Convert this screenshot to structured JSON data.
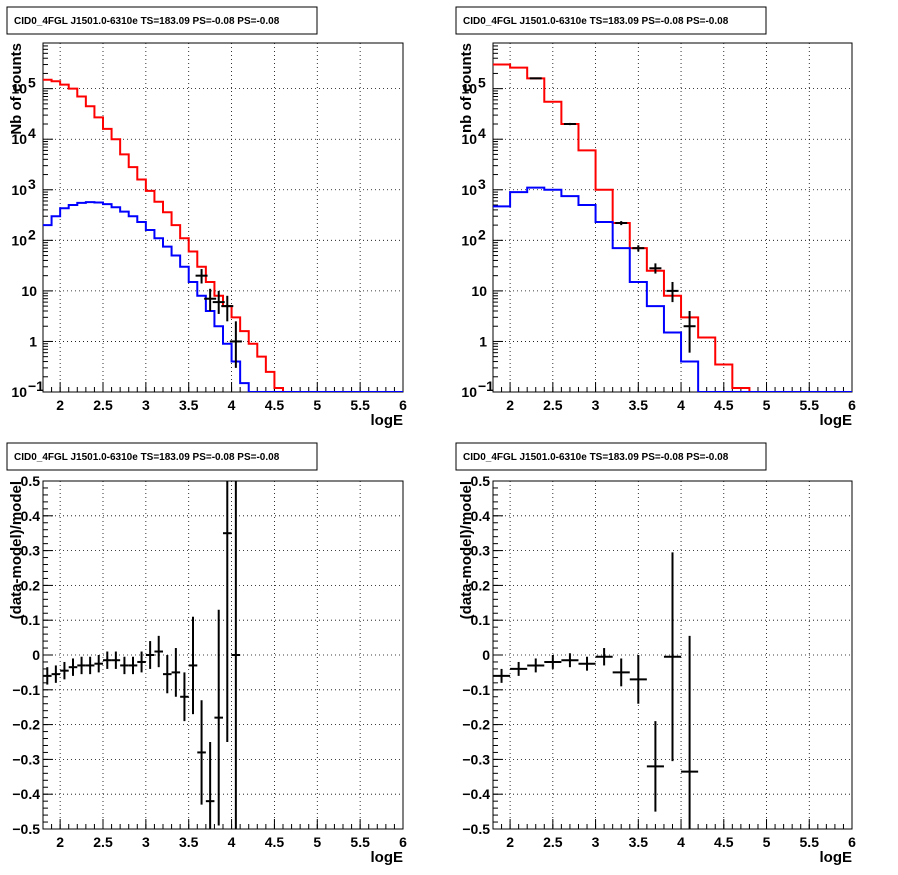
{
  "chart_data": [
    {
      "type": "line",
      "title": "CID0_4FGL J1501.0-6310e TS=183.09 PS=-0.08 PS=-0.08",
      "xlabel": "logE",
      "ylabel": "Nb of counts",
      "scale": "log",
      "grid": true,
      "xlim": [
        1.8,
        6.0
      ],
      "ylim": [
        0.1,
        800000
      ],
      "x_ticks": [
        "2",
        "2.5",
        "3",
        "3.5",
        "4",
        "4.5",
        "5",
        "5.5",
        "6"
      ],
      "y_ticks": [
        {
          "v": 0.1,
          "base": "10",
          "exp": "−1"
        },
        {
          "v": 1,
          "label": "1"
        },
        {
          "v": 10,
          "label": "10"
        },
        {
          "v": 100,
          "base": "10",
          "exp": "2"
        },
        {
          "v": 1000,
          "base": "10",
          "exp": "3"
        },
        {
          "v": 10000,
          "base": "10",
          "exp": "4"
        },
        {
          "v": 100000,
          "base": "10",
          "exp": "5"
        }
      ],
      "bin_edges": [
        1.8,
        1.9,
        2.0,
        2.1,
        2.2,
        2.3,
        2.4,
        2.5,
        2.6,
        2.7,
        2.8,
        2.9,
        3.0,
        3.1,
        3.2,
        3.3,
        3.4,
        3.5,
        3.6,
        3.7,
        3.8,
        3.9,
        4.0,
        4.1,
        4.2,
        4.3,
        4.4,
        4.5,
        4.6,
        4.7,
        4.8,
        4.9,
        5.0,
        5.1,
        5.2,
        5.3,
        5.4,
        5.5,
        5.6,
        5.7,
        5.8,
        5.9,
        6.0
      ],
      "series": [
        {
          "color": "#ff0000",
          "kind": "hist",
          "values": [
            150000,
            140000,
            120000,
            100000,
            70000,
            45000,
            27000,
            16000,
            10000,
            5000,
            2800,
            1600,
            950,
            580,
            360,
            200,
            110,
            60,
            30,
            15,
            8,
            5,
            3,
            1.6,
            0.9,
            0.5,
            0.25,
            0.12,
            0.1,
            0.1,
            0.1,
            0.1,
            0.1,
            0.1,
            0.1,
            0.1,
            0.1,
            0.1,
            0.1,
            0.1,
            0.1,
            0.1
          ]
        },
        {
          "color": "#0000ff",
          "kind": "hist",
          "values": [
            200,
            300,
            430,
            500,
            550,
            570,
            560,
            520,
            450,
            370,
            300,
            230,
            160,
            110,
            75,
            50,
            30,
            15,
            8,
            4,
            2,
            0.9,
            0.4,
            0.15,
            0.1,
            0.1,
            0.1,
            0.1,
            0.1,
            0.1,
            0.1,
            0.1,
            0.1,
            0.1,
            0.1,
            0.1,
            0.1,
            0.1,
            0.1,
            0.1,
            0.1,
            0.1
          ]
        },
        {
          "color": "#000000",
          "kind": "points",
          "points": [
            {
              "x": 3.65,
              "y": 20,
              "ylo": 14,
              "yhi": 27
            },
            {
              "x": 3.75,
              "y": 7,
              "ylo": 4,
              "yhi": 11
            },
            {
              "x": 3.85,
              "y": 6,
              "ylo": 3.5,
              "yhi": 10
            },
            {
              "x": 3.95,
              "y": 5,
              "ylo": 2.5,
              "yhi": 8
            },
            {
              "x": 4.05,
              "y": 1,
              "ylo": 0.3,
              "yhi": 2.5
            }
          ]
        }
      ]
    },
    {
      "type": "line",
      "title": "CID0_4FGL J1501.0-6310e TS=183.09 PS=-0.08 PS=-0.08",
      "xlabel": "logE",
      "ylabel": "nb of counts",
      "scale": "log",
      "grid": true,
      "xlim": [
        1.8,
        6.0
      ],
      "ylim": [
        0.1,
        800000
      ],
      "x_ticks": [
        "2",
        "2.5",
        "3",
        "3.5",
        "4",
        "4.5",
        "5",
        "5.5",
        "6"
      ],
      "y_ticks": [
        {
          "v": 0.1,
          "base": "10",
          "exp": "−1"
        },
        {
          "v": 1,
          "label": "1"
        },
        {
          "v": 10,
          "label": "10"
        },
        {
          "v": 100,
          "base": "10",
          "exp": "2"
        },
        {
          "v": 1000,
          "base": "10",
          "exp": "3"
        },
        {
          "v": 10000,
          "base": "10",
          "exp": "4"
        },
        {
          "v": 100000,
          "base": "10",
          "exp": "5"
        }
      ],
      "bin_edges": [
        1.8,
        2.0,
        2.2,
        2.4,
        2.6,
        2.8,
        3.0,
        3.2,
        3.4,
        3.6,
        3.8,
        4.0,
        4.2,
        4.4,
        4.6,
        4.8,
        5.0,
        5.2,
        5.4,
        5.6,
        5.8,
        6.0
      ],
      "series": [
        {
          "color": "#ff0000",
          "kind": "hist",
          "values": [
            300000,
            260000,
            160000,
            55000,
            20000,
            6000,
            1000,
            220,
            70,
            25,
            8,
            3,
            1.2,
            0.35,
            0.12,
            0.1,
            0.1,
            0.1,
            0.1,
            0.1,
            0.1
          ]
        },
        {
          "color": "#0000ff",
          "kind": "hist",
          "values": [
            470,
            900,
            1100,
            1000,
            750,
            500,
            230,
            70,
            15,
            5,
            1.5,
            0.4,
            0.1,
            0.1,
            0.1,
            0.1,
            0.1,
            0.1,
            0.1,
            0.1,
            0.1
          ]
        },
        {
          "color": "#000000",
          "kind": "points",
          "points": [
            {
              "x": 2.3,
              "y": 160000,
              "ylo": 155000,
              "yhi": 165000
            },
            {
              "x": 2.7,
              "y": 20000,
              "ylo": 19000,
              "yhi": 21000
            },
            {
              "x": 3.3,
              "y": 220,
              "ylo": 200,
              "yhi": 240
            },
            {
              "x": 3.5,
              "y": 70,
              "ylo": 60,
              "yhi": 80
            },
            {
              "x": 3.7,
              "y": 28,
              "ylo": 22,
              "yhi": 35
            },
            {
              "x": 3.9,
              "y": 10,
              "ylo": 6,
              "yhi": 15
            },
            {
              "x": 4.1,
              "y": 2,
              "ylo": 0.6,
              "yhi": 4
            }
          ]
        }
      ]
    },
    {
      "type": "scatter",
      "title": "CID0_4FGL J1501.0-6310e TS=183.09 PS=-0.08 PS=-0.08",
      "xlabel": "logE",
      "ylabel": "(data-model)/model",
      "scale": "linear",
      "grid": true,
      "xlim": [
        1.8,
        6.0
      ],
      "ylim": [
        -0.5,
        0.5
      ],
      "x_ticks": [
        "2",
        "2.5",
        "3",
        "3.5",
        "4",
        "4.5",
        "5",
        "5.5",
        "6"
      ],
      "y_ticks": [
        "−0.5",
        "−0.4",
        "−0.3",
        "−0.2",
        "−0.1",
        "0",
        "0.1",
        "0.2",
        "0.3",
        "0.4",
        "0.5"
      ],
      "half_width": 0.05,
      "points": [
        {
          "x": 1.85,
          "y": -0.06,
          "err": 0.025
        },
        {
          "x": 1.95,
          "y": -0.055,
          "err": 0.025
        },
        {
          "x": 2.05,
          "y": -0.045,
          "err": 0.025
        },
        {
          "x": 2.15,
          "y": -0.035,
          "err": 0.025
        },
        {
          "x": 2.25,
          "y": -0.03,
          "err": 0.025
        },
        {
          "x": 2.35,
          "y": -0.03,
          "err": 0.025
        },
        {
          "x": 2.45,
          "y": -0.025,
          "err": 0.025
        },
        {
          "x": 2.55,
          "y": -0.015,
          "err": 0.025
        },
        {
          "x": 2.65,
          "y": -0.015,
          "err": 0.025
        },
        {
          "x": 2.75,
          "y": -0.03,
          "err": 0.025
        },
        {
          "x": 2.85,
          "y": -0.03,
          "err": 0.025
        },
        {
          "x": 2.95,
          "y": -0.02,
          "err": 0.03
        },
        {
          "x": 3.05,
          "y": 0.0,
          "err": 0.04
        },
        {
          "x": 3.15,
          "y": 0.01,
          "err": 0.045
        },
        {
          "x": 3.25,
          "y": -0.055,
          "err": 0.055
        },
        {
          "x": 3.35,
          "y": -0.05,
          "err": 0.07
        },
        {
          "x": 3.45,
          "y": -0.12,
          "err": 0.07
        },
        {
          "x": 3.55,
          "y": -0.03,
          "err": 0.14
        },
        {
          "x": 3.65,
          "y": -0.28,
          "err": 0.15
        },
        {
          "x": 3.75,
          "y": -0.42,
          "err": 0.17
        },
        {
          "x": 3.85,
          "y": -0.18,
          "err": 0.31
        },
        {
          "x": 3.95,
          "y": 0.35,
          "err": 0.6
        },
        {
          "x": 4.05,
          "y": 0.0,
          "err": 0.85
        }
      ]
    },
    {
      "type": "scatter",
      "title": "CID0_4FGL J1501.0-6310e TS=183.09 PS=-0.08 PS=-0.08",
      "xlabel": "logE",
      "ylabel": "(data-model)/model",
      "scale": "linear",
      "grid": true,
      "xlim": [
        1.8,
        6.0
      ],
      "ylim": [
        -0.5,
        0.5
      ],
      "x_ticks": [
        "2",
        "2.5",
        "3",
        "3.5",
        "4",
        "4.5",
        "5",
        "5.5",
        "6"
      ],
      "y_ticks": [
        "−0.5",
        "−0.4",
        "−0.3",
        "−0.2",
        "−0.1",
        "0",
        "0.1",
        "0.2",
        "0.3",
        "0.4",
        "0.5"
      ],
      "half_width": 0.1,
      "points": [
        {
          "x": 1.9,
          "y": -0.06,
          "err": 0.02
        },
        {
          "x": 2.1,
          "y": -0.04,
          "err": 0.02
        },
        {
          "x": 2.3,
          "y": -0.03,
          "err": 0.02
        },
        {
          "x": 2.5,
          "y": -0.02,
          "err": 0.02
        },
        {
          "x": 2.7,
          "y": -0.015,
          "err": 0.02
        },
        {
          "x": 2.9,
          "y": -0.025,
          "err": 0.02
        },
        {
          "x": 3.1,
          "y": -0.005,
          "err": 0.025
        },
        {
          "x": 3.3,
          "y": -0.05,
          "err": 0.04
        },
        {
          "x": 3.5,
          "y": -0.07,
          "err": 0.07
        },
        {
          "x": 3.7,
          "y": -0.32,
          "err": 0.13
        },
        {
          "x": 3.9,
          "y": -0.005,
          "err": 0.3
        },
        {
          "x": 4.1,
          "y": -0.335,
          "err": 0.39
        }
      ]
    }
  ]
}
